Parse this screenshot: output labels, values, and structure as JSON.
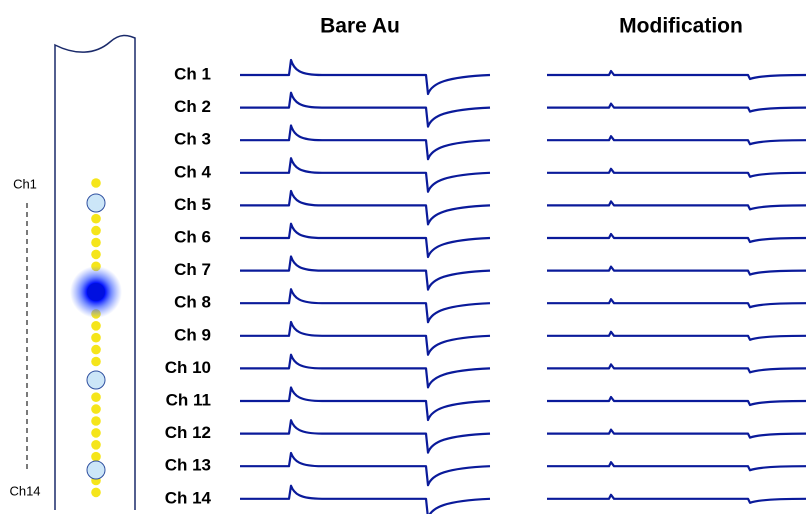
{
  "titles": {
    "bare": "Bare Au",
    "modified": "Modification"
  },
  "probe": {
    "top_label": "Ch1",
    "bottom_label": "Ch14"
  },
  "channels": [
    "Ch 1",
    "Ch 2",
    "Ch 3",
    "Ch 4",
    "Ch 5",
    "Ch 6",
    "Ch 7",
    "Ch 8",
    "Ch 9",
    "Ch 10",
    "Ch 11",
    "Ch 12",
    "Ch 13",
    "Ch 14"
  ]
}
